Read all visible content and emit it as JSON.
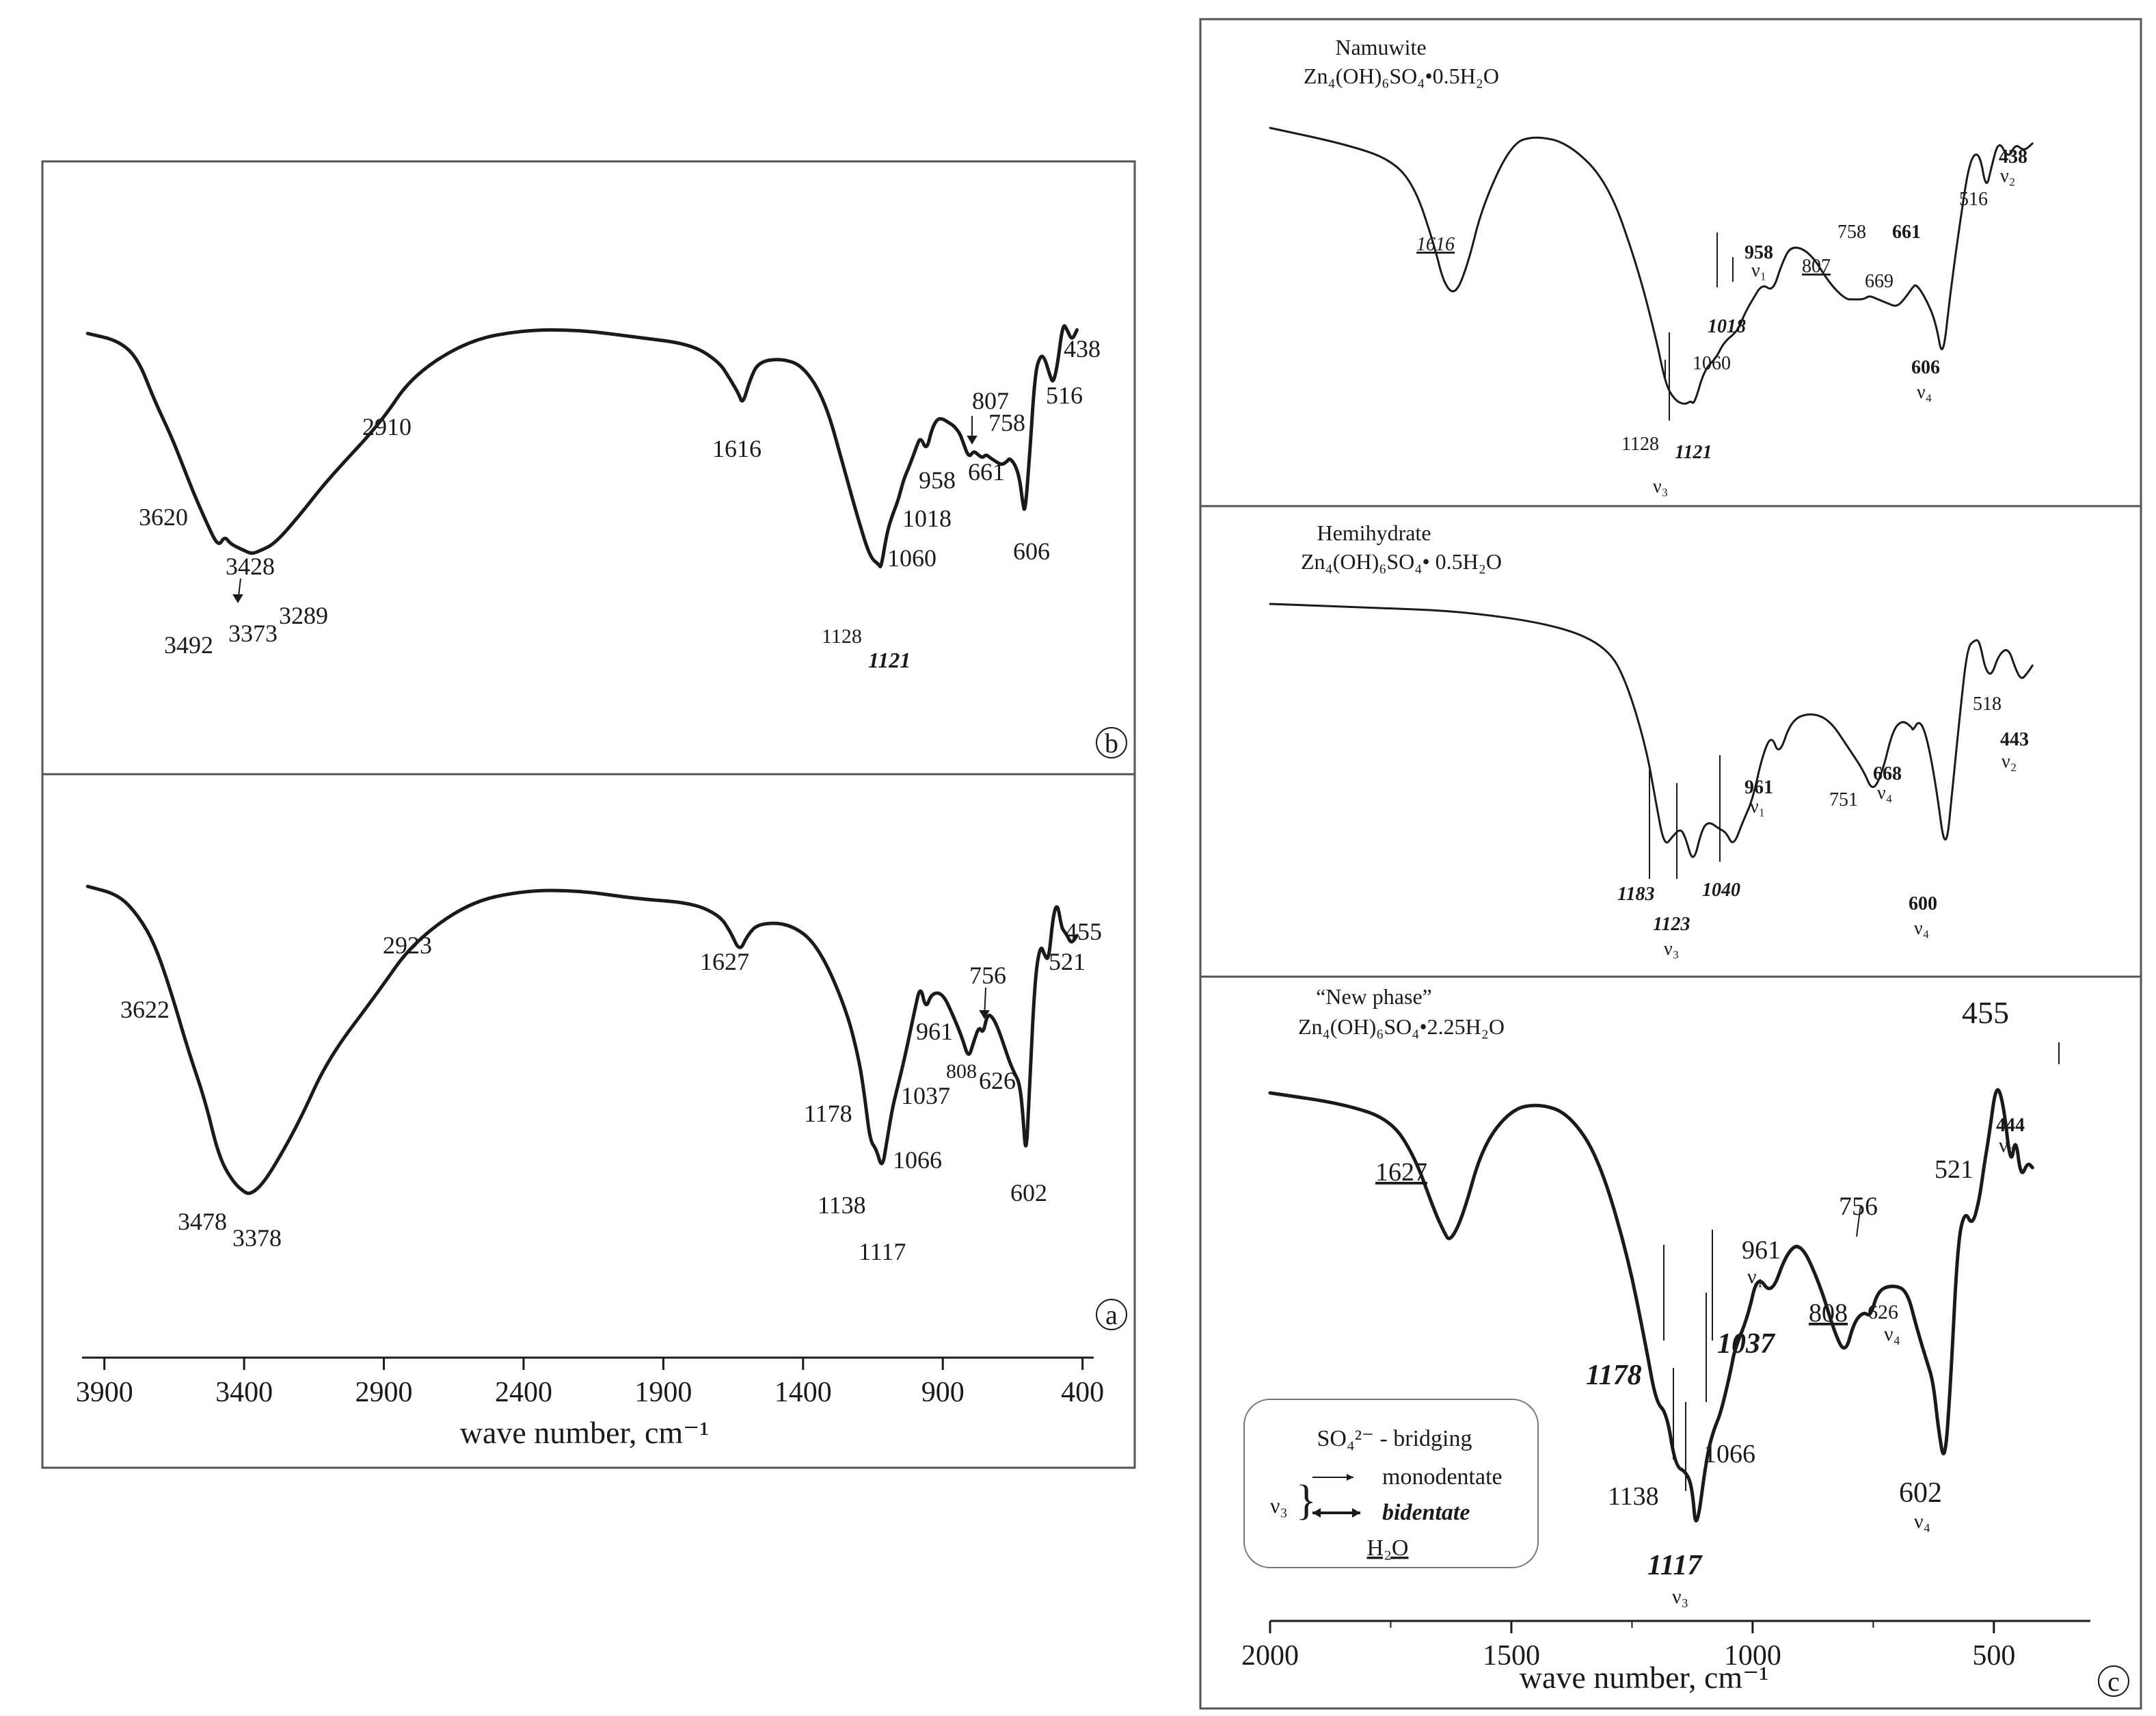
{
  "figure": {
    "panel_letters": {
      "a": "a",
      "b": "b",
      "c": "c"
    },
    "legend_c": {
      "sulfate": "SO₄²⁻ - bridging",
      "nu3": "ν₃",
      "mono": "monodentate",
      "bi": "bidentate",
      "water": "H₂O"
    }
  },
  "chart_data": [
    {
      "panel": "a",
      "type": "line",
      "xlabel": "wave number, cm⁻¹",
      "xlim": [
        3980,
        360
      ],
      "x_ticks": [
        3900,
        3400,
        2900,
        2400,
        1900,
        1400,
        900,
        400
      ],
      "x_tick_labels": [
        "3900",
        "3400",
        "2900",
        "2400",
        "1900",
        "1400",
        "900",
        "400"
      ],
      "series": [
        {
          "x": [
            3960,
            3850,
            3780,
            3720,
            3660,
            3600,
            3540,
            3490,
            3440,
            3400,
            3378,
            3340,
            3290,
            3200,
            3100,
            2923,
            2800,
            2600,
            2400,
            2200,
            2000,
            1800,
            1700,
            1660,
            1627,
            1600,
            1560,
            1450,
            1350,
            1250,
            1200,
            1178,
            1160,
            1138,
            1117,
            1100,
            1080,
            1066,
            1037,
            1000,
            980,
            961,
            940,
            900,
            860,
            830,
            808,
            790,
            770,
            756,
            740,
            720,
            700,
            680,
            660,
            640,
            626,
            615,
            602,
            590,
            570,
            550,
            535,
            521,
            505,
            490,
            475,
            465,
            455,
            440,
            420
          ],
          "y": [
            0.84,
            0.82,
            0.77,
            0.7,
            0.58,
            0.44,
            0.32,
            0.18,
            0.12,
            0.095,
            0.09,
            0.11,
            0.16,
            0.27,
            0.42,
            0.58,
            0.7,
            0.8,
            0.83,
            0.83,
            0.81,
            0.8,
            0.77,
            0.73,
            0.68,
            0.72,
            0.75,
            0.75,
            0.7,
            0.55,
            0.42,
            0.32,
            0.22,
            0.2,
            0.15,
            0.22,
            0.3,
            0.34,
            0.42,
            0.54,
            0.6,
            0.54,
            0.58,
            0.58,
            0.52,
            0.47,
            0.42,
            0.46,
            0.5,
            0.48,
            0.53,
            0.52,
            0.49,
            0.45,
            0.41,
            0.38,
            0.36,
            0.3,
            0.17,
            0.35,
            0.62,
            0.7,
            0.67,
            0.66,
            0.77,
            0.8,
            0.74,
            0.73,
            0.72,
            0.7,
            0.72
          ]
        }
      ],
      "annotations": [
        {
          "text": "3622",
          "x": 3622
        },
        {
          "text": "3478",
          "x": 3478
        },
        {
          "text": "3378",
          "x": 3378
        },
        {
          "text": "2923",
          "x": 2923
        },
        {
          "text": "1627",
          "x": 1627
        },
        {
          "text": "1178",
          "x": 1178
        },
        {
          "text": "1138",
          "x": 1138
        },
        {
          "text": "1117",
          "x": 1117
        },
        {
          "text": "1066",
          "x": 1066
        },
        {
          "text": "1037",
          "x": 1037
        },
        {
          "text": "961",
          "x": 961
        },
        {
          "text": "808",
          "x": 808
        },
        {
          "text": "756",
          "x": 756
        },
        {
          "text": "626",
          "x": 626
        },
        {
          "text": "602",
          "x": 602
        },
        {
          "text": "521",
          "x": 521
        },
        {
          "text": "455",
          "x": 455
        }
      ]
    },
    {
      "panel": "b",
      "type": "line",
      "xlim": [
        3980,
        360
      ],
      "series": [
        {
          "x": [
            3960,
            3850,
            3780,
            3720,
            3660,
            3620,
            3580,
            3530,
            3492,
            3470,
            3450,
            3428,
            3400,
            3373,
            3340,
            3289,
            3200,
            3100,
            2910,
            2800,
            2600,
            2400,
            2200,
            2000,
            1800,
            1700,
            1660,
            1630,
            1616,
            1590,
            1560,
            1480,
            1400,
            1320,
            1250,
            1200,
            1160,
            1128,
            1121,
            1100,
            1080,
            1060,
            1040,
            1018,
            995,
            980,
            958,
            940,
            920,
            900,
            880,
            860,
            840,
            830,
            807,
            790,
            775,
            758,
            745,
            730,
            710,
            690,
            670,
            661,
            640,
            625,
            615,
            606,
            590,
            570,
            550,
            535,
            516,
            505,
            490,
            470,
            455,
            438,
            420
          ],
          "y": [
            0.87,
            0.85,
            0.8,
            0.68,
            0.58,
            0.5,
            0.42,
            0.33,
            0.27,
            0.3,
            0.28,
            0.27,
            0.26,
            0.25,
            0.26,
            0.28,
            0.36,
            0.46,
            0.62,
            0.75,
            0.85,
            0.88,
            0.88,
            0.86,
            0.84,
            0.79,
            0.74,
            0.7,
            0.67,
            0.74,
            0.79,
            0.8,
            0.78,
            0.68,
            0.48,
            0.34,
            0.24,
            0.22,
            0.21,
            0.31,
            0.36,
            0.4,
            0.46,
            0.5,
            0.55,
            0.58,
            0.54,
            0.6,
            0.63,
            0.63,
            0.62,
            0.61,
            0.59,
            0.57,
            0.52,
            0.54,
            0.53,
            0.52,
            0.53,
            0.52,
            0.51,
            0.5,
            0.51,
            0.52,
            0.5,
            0.46,
            0.4,
            0.36,
            0.52,
            0.76,
            0.81,
            0.8,
            0.75,
            0.73,
            0.78,
            0.9,
            0.88,
            0.85,
            0.88
          ]
        }
      ],
      "annotations": [
        {
          "text": "3620",
          "x": 3620
        },
        {
          "text": "3492",
          "x": 3492
        },
        {
          "text": "3428",
          "x": 3428
        },
        {
          "text": "3373",
          "x": 3373
        },
        {
          "text": "3289",
          "x": 3289
        },
        {
          "text": "2910",
          "x": 2910
        },
        {
          "text": "1616",
          "x": 1616
        },
        {
          "text": "1128",
          "x": 1128
        },
        {
          "text": "1121",
          "x": 1121
        },
        {
          "text": "1060",
          "x": 1060
        },
        {
          "text": "1018",
          "x": 1018
        },
        {
          "text": "958",
          "x": 958
        },
        {
          "text": "807",
          "x": 807
        },
        {
          "text": "758",
          "x": 758
        },
        {
          "text": "661",
          "x": 661
        },
        {
          "text": "606",
          "x": 606
        },
        {
          "text": "516",
          "x": 516
        },
        {
          "text": "438",
          "x": 438
        }
      ]
    },
    {
      "panel": "c-top",
      "type": "line",
      "title": "Namuwite",
      "subtitle": "Zn₄(OH)₆SO₄•0.5H₂O",
      "series": [
        {
          "x": [
            2000,
            1850,
            1750,
            1700,
            1660,
            1640,
            1616,
            1590,
            1560,
            1500,
            1450,
            1380,
            1300,
            1240,
            1200,
            1180,
            1160,
            1140,
            1128,
            1121,
            1100,
            1075,
            1060,
            1030,
            1018,
            1000,
            980,
            958,
            940,
            920,
            880,
            840,
            807,
            790,
            770,
            758,
            740,
            720,
            700,
            680,
            669,
            661,
            640,
            620,
            606,
            590,
            570,
            550,
            530,
            516,
            505,
            490,
            470,
            455,
            438,
            420
          ],
          "y": [
            0.9,
            0.86,
            0.82,
            0.75,
            0.6,
            0.5,
            0.47,
            0.55,
            0.7,
            0.86,
            0.88,
            0.86,
            0.76,
            0.55,
            0.36,
            0.24,
            0.2,
            0.19,
            0.2,
            0.19,
            0.28,
            0.31,
            0.35,
            0.38,
            0.42,
            0.46,
            0.5,
            0.48,
            0.55,
            0.6,
            0.58,
            0.5,
            0.46,
            0.46,
            0.46,
            0.47,
            0.46,
            0.45,
            0.44,
            0.47,
            0.49,
            0.5,
            0.46,
            0.4,
            0.3,
            0.48,
            0.66,
            0.82,
            0.84,
            0.74,
            0.8,
            0.87,
            0.82,
            0.86,
            0.84,
            0.86
          ]
        }
      ],
      "annotations": [
        "1616",
        "1128",
        "1121",
        "ν₃",
        "1060",
        "1018",
        "958",
        "ν₁",
        "807",
        "758",
        "669",
        "661",
        "606",
        "ν₄",
        "516",
        "438",
        "ν₂"
      ]
    },
    {
      "panel": "c-middle",
      "type": "line",
      "title": "Hemihydrate",
      "subtitle": "Zn₄(OH)₆SO₄• 0.5H₂O",
      "series": [
        {
          "x": [
            2000,
            1800,
            1600,
            1400,
            1300,
            1260,
            1220,
            1200,
            1183,
            1165,
            1150,
            1140,
            1123,
            1105,
            1090,
            1070,
            1055,
            1040,
            1020,
            1000,
            980,
            961,
            945,
            920,
            880,
            840,
            800,
            770,
            751,
            730,
            710,
            690,
            670,
            668,
            655,
            640,
            620,
            600,
            585,
            570,
            555,
            540,
            530,
            518,
            505,
            490,
            470,
            455,
            443,
            430,
            420
          ],
          "y": [
            0.9,
            0.89,
            0.88,
            0.84,
            0.78,
            0.68,
            0.5,
            0.35,
            0.23,
            0.26,
            0.28,
            0.26,
            0.18,
            0.28,
            0.3,
            0.28,
            0.27,
            0.23,
            0.3,
            0.36,
            0.48,
            0.54,
            0.48,
            0.58,
            0.6,
            0.58,
            0.5,
            0.44,
            0.38,
            0.44,
            0.55,
            0.58,
            0.56,
            0.55,
            0.58,
            0.54,
            0.4,
            0.2,
            0.4,
            0.6,
            0.78,
            0.8,
            0.8,
            0.72,
            0.7,
            0.76,
            0.78,
            0.72,
            0.69,
            0.71,
            0.73
          ]
        }
      ],
      "annotations": [
        "1183",
        "1123",
        "ν₃",
        "1040",
        "961",
        "ν₁",
        "751",
        "668",
        "ν₄",
        "600",
        "ν₄",
        "518",
        "443",
        "ν₂"
      ]
    },
    {
      "panel": "c-bottom",
      "type": "line",
      "title": "“New phase”",
      "subtitle": "Zn₄(OH)₆SO₄•2.25H₂O",
      "xlabel": "wave number, cm⁻¹",
      "xlim": [
        2000,
        300
      ],
      "x_ticks": [
        2000,
        1500,
        1000,
        500
      ],
      "x_tick_labels": [
        "2000",
        "1500",
        "1000",
        "500"
      ],
      "series": [
        {
          "x": [
            2000,
            1850,
            1750,
            1700,
            1660,
            1640,
            1627,
            1600,
            1560,
            1500,
            1440,
            1380,
            1320,
            1260,
            1220,
            1200,
            1178,
            1160,
            1138,
            1125,
            1117,
            1095,
            1080,
            1066,
            1045,
            1037,
            1010,
            990,
            961,
            930,
            900,
            860,
            830,
            808,
            790,
            770,
            756,
            740,
            710,
            680,
            660,
            640,
            626,
            615,
            602,
            590,
            575,
            560,
            545,
            530,
            521,
            510,
            495,
            480,
            465,
            455,
            444,
            430,
            420
          ],
          "y": [
            0.9,
            0.88,
            0.85,
            0.78,
            0.68,
            0.64,
            0.62,
            0.67,
            0.8,
            0.87,
            0.88,
            0.86,
            0.78,
            0.6,
            0.42,
            0.32,
            0.3,
            0.2,
            0.19,
            0.16,
            0.07,
            0.22,
            0.27,
            0.3,
            0.38,
            0.42,
            0.48,
            0.56,
            0.52,
            0.6,
            0.62,
            0.54,
            0.45,
            0.41,
            0.47,
            0.49,
            0.48,
            0.53,
            0.54,
            0.53,
            0.46,
            0.4,
            0.36,
            0.27,
            0.2,
            0.35,
            0.62,
            0.68,
            0.65,
            0.7,
            0.76,
            0.82,
            0.92,
            0.88,
            0.76,
            0.82,
            0.74,
            0.77,
            0.76
          ]
        }
      ],
      "annotations": [
        "1627",
        "1178",
        "1138",
        "1117",
        "ν₃",
        "1066",
        "1037",
        "961",
        "ν₁",
        "808",
        "756",
        "626",
        "ν₄",
        "602",
        "ν₄",
        "521",
        "455",
        "444",
        "ν₂"
      ]
    }
  ]
}
